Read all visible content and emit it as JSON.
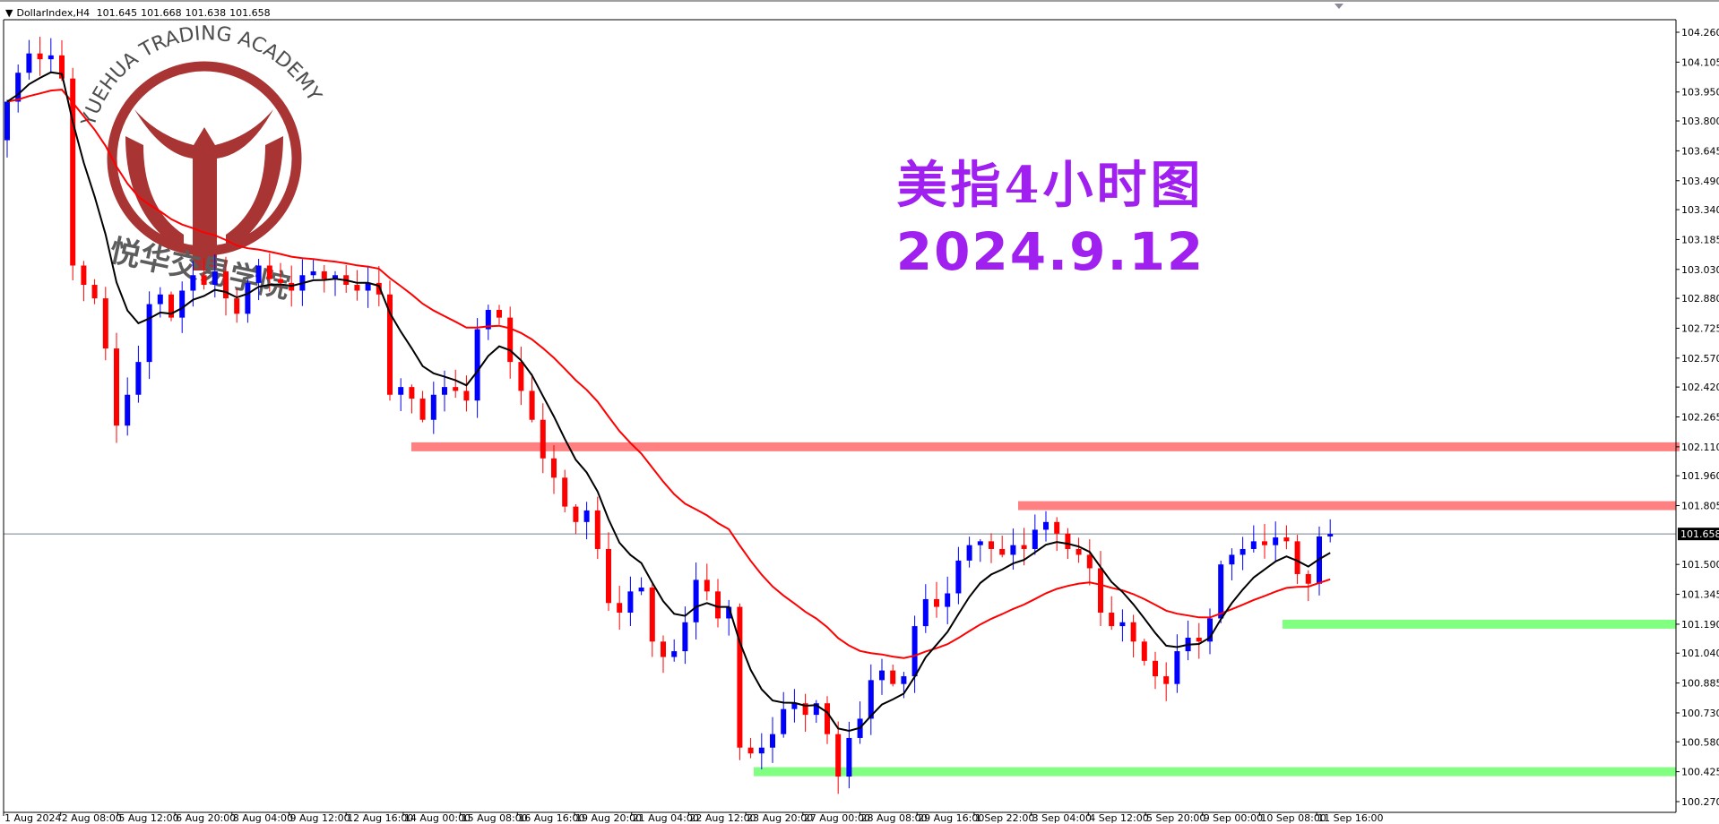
{
  "header": {
    "symbol": "DollarIndex,H4",
    "open": "101.645",
    "high": "101.668",
    "low": "101.638",
    "close": "101.658"
  },
  "annotation": {
    "title_line1": "美指4小时图",
    "title_line2": "2024.9.12",
    "color": "#a020f0"
  },
  "watermark": {
    "text_en": "YUEHUA TRADING ACADEMY",
    "text_cn": "悦华交易学院",
    "color": "#a52a2a"
  },
  "chart_data": {
    "type": "candlestick",
    "symbol": "DollarIndex",
    "timeframe": "H4",
    "ylim": [
      100.27,
      104.26
    ],
    "y_ticks": [
      "104.260",
      "104.105",
      "103.950",
      "103.800",
      "103.645",
      "103.490",
      "103.340",
      "103.185",
      "103.030",
      "102.880",
      "102.725",
      "102.570",
      "102.420",
      "102.265",
      "102.110",
      "101.960",
      "101.805",
      "101.658",
      "101.500",
      "101.345",
      "101.190",
      "101.040",
      "100.885",
      "100.730",
      "100.580",
      "100.425",
      "100.270"
    ],
    "x_ticks": [
      "1 Aug 2024",
      "2 Aug 08:00",
      "5 Aug 12:00",
      "6 Aug 20:00",
      "8 Aug 04:00",
      "9 Aug 12:00",
      "12 Aug 16:00",
      "14 Aug 00:00",
      "15 Aug 08:00",
      "16 Aug 16:00",
      "19 Aug 20:00",
      "21 Aug 04:00",
      "22 Aug 12:00",
      "23 Aug 20:00",
      "27 Aug 00:00",
      "28 Aug 08:00",
      "29 Aug 16:00",
      "1 Sep 22:00",
      "3 Sep 04:00",
      "4 Sep 12:00",
      "5 Sep 20:00",
      "9 Sep 00:00",
      "10 Sep 08:00",
      "11 Sep 16:00"
    ],
    "current_price": 101.658,
    "closes": [
      103.9,
      104.05,
      104.15,
      104.12,
      104.14,
      104.02,
      103.05,
      102.95,
      102.88,
      102.62,
      102.22,
      102.38,
      102.55,
      102.85,
      102.9,
      102.78,
      102.92,
      103.0,
      102.95,
      103.02,
      102.88,
      102.8,
      102.96,
      103.05,
      102.98,
      102.96,
      102.92,
      103.0,
      103.02,
      102.98,
      103.0,
      102.95,
      102.92,
      102.96,
      102.9,
      102.38,
      102.42,
      102.36,
      102.25,
      102.38,
      102.42,
      102.4,
      102.35,
      102.72,
      102.82,
      102.78,
      102.55,
      102.4,
      102.25,
      102.05,
      101.95,
      101.8,
      101.72,
      101.78,
      101.58,
      101.3,
      101.25,
      101.36,
      101.38,
      101.1,
      101.02,
      101.05,
      101.2,
      101.42,
      101.36,
      101.22,
      101.28,
      100.55,
      100.52,
      100.55,
      100.62,
      100.75,
      100.78,
      100.72,
      100.78,
      100.62,
      100.4,
      100.6,
      100.7,
      100.9,
      100.95,
      100.88,
      100.92,
      101.18,
      101.32,
      101.28,
      101.35,
      101.52,
      101.6,
      101.62,
      101.58,
      101.55,
      101.6,
      101.58,
      101.68,
      101.72,
      101.66,
      101.58,
      101.55,
      101.48,
      101.25,
      101.18,
      101.2,
      101.1,
      101.0,
      100.92,
      100.88,
      101.05,
      101.12,
      101.1,
      101.22,
      101.5,
      101.55,
      101.58,
      101.62,
      101.6,
      101.64,
      101.62,
      101.45,
      101.4,
      101.645,
      101.658
    ],
    "first_open": 103.7,
    "colors": {
      "bull": "#0000ff",
      "bear": "#ff0000",
      "ma_fast": "#000000",
      "ma_slow": "#ff0000",
      "price_line": "#708090"
    },
    "zones": [
      {
        "price": 102.11,
        "color": "#ff8080",
        "kind": "resistance"
      },
      {
        "price": 101.805,
        "color": "#ff8080",
        "kind": "resistance"
      },
      {
        "price": 101.19,
        "color": "#80ff80",
        "kind": "support"
      },
      {
        "price": 100.425,
        "color": "#80ff80",
        "kind": "support"
      }
    ]
  }
}
